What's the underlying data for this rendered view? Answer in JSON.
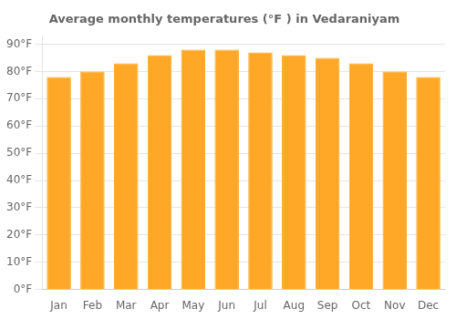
{
  "chart_data": {
    "type": "bar",
    "title": "Average monthly temperatures (°F ) in Vedaraniyam",
    "categories": [
      "Jan",
      "Feb",
      "Mar",
      "Apr",
      "May",
      "Jun",
      "Jul",
      "Aug",
      "Sep",
      "Oct",
      "Nov",
      "Dec"
    ],
    "values": [
      78,
      80,
      83,
      86,
      88,
      88,
      87,
      86,
      85,
      83,
      80,
      78
    ],
    "color": "#FFA726",
    "ylim": [
      0,
      93
    ],
    "yticks": [
      {
        "value": 0,
        "label": "0°F"
      },
      {
        "value": 10,
        "label": "10°F"
      },
      {
        "value": 20,
        "label": "20°F"
      },
      {
        "value": 30,
        "label": "30°F"
      },
      {
        "value": 40,
        "label": "40°F"
      },
      {
        "value": 50,
        "label": "50°F"
      },
      {
        "value": 60,
        "label": "60°F"
      },
      {
        "value": 70,
        "label": "70°F"
      },
      {
        "value": 80,
        "label": "80°F"
      },
      {
        "value": 90,
        "label": "90°F"
      }
    ],
    "grid": true
  }
}
